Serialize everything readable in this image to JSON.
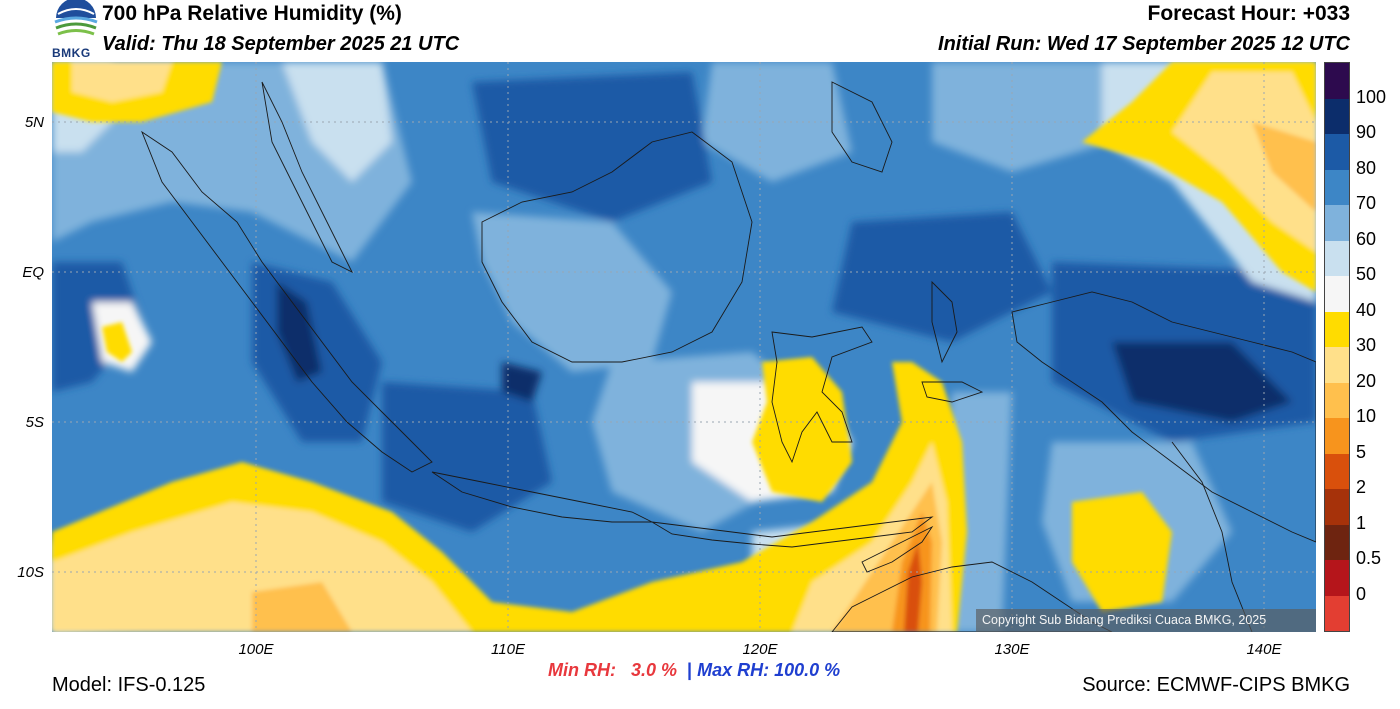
{
  "header": {
    "title": "700 hPa Relative Humidity (%)",
    "valid": "Valid: Thu 18 September 2025 21 UTC",
    "forecast_hour": "Forecast Hour: +033",
    "initial_run": "Initial Run: Wed 17 September 2025 12 UTC"
  },
  "logo": {
    "text": "BMKG"
  },
  "axes": {
    "y_ticks": [
      "5N",
      "EQ",
      "5S",
      "10S"
    ],
    "x_ticks": [
      "100E",
      "110E",
      "120E",
      "130E",
      "140E"
    ]
  },
  "colorbar": {
    "labels": [
      "100",
      "90",
      "80",
      "70",
      "60",
      "50",
      "40",
      "30",
      "20",
      "10",
      "5",
      "2",
      "1",
      "0.5",
      "0"
    ],
    "colors": [
      "#2d0a4e",
      "#0c2d6b",
      "#1c5aa6",
      "#3d86c6",
      "#7fb2dc",
      "#c9e0ef",
      "#f6f6f6",
      "#ffdc00",
      "#ffe08a",
      "#ffc04d",
      "#f7941d",
      "#d9500c",
      "#a6320a",
      "#6e2410",
      "#b5151b",
      "#e33e32"
    ]
  },
  "copyright": "Copyright Sub Bidang Prediksi Cuaca BMKG, 2025",
  "stats": {
    "min_label": "Min RH:",
    "min_value": "3.0 %",
    "separator": "|",
    "max_label": "Max RH:",
    "max_value": "100.0 %"
  },
  "footer": {
    "model": "Model: IFS-0.125",
    "source": "Source: ECMWF-CIPS BMKG"
  }
}
